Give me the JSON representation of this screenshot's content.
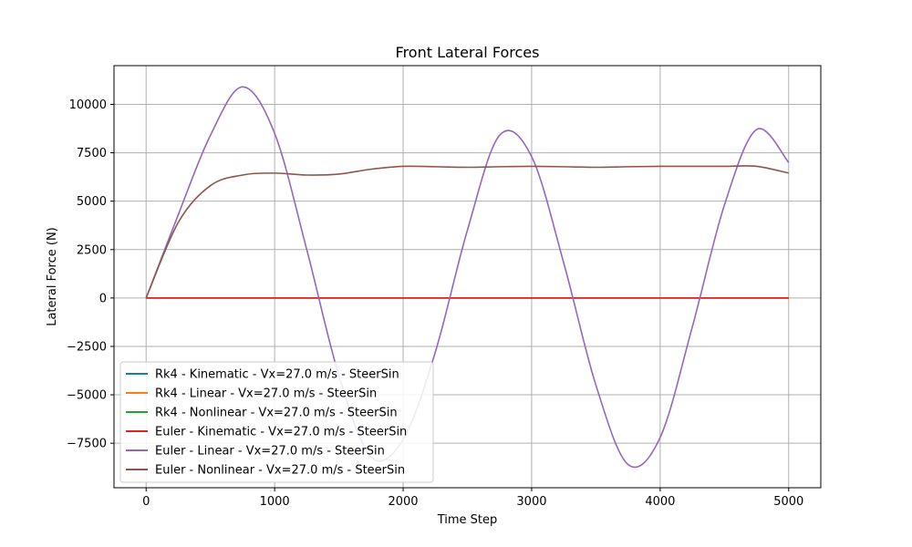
{
  "chart_data": {
    "type": "line",
    "title": "Front Lateral Forces",
    "xlabel": "Time Step",
    "ylabel": "Lateral Force (N)",
    "xlim": [
      -250,
      5250
    ],
    "ylim": [
      -9800,
      12000
    ],
    "xticks": [
      0,
      1000,
      2000,
      3000,
      4000,
      5000
    ],
    "xtick_labels": [
      "0",
      "1000",
      "2000",
      "3000",
      "4000",
      "5000"
    ],
    "yticks": [
      -7500,
      -5000,
      -2500,
      0,
      2500,
      5000,
      7500,
      10000
    ],
    "ytick_labels": [
      "−7500",
      "−5000",
      "−2500",
      "0",
      "2500",
      "5000",
      "7500",
      "10000"
    ],
    "grid": true,
    "legend_position": "lower-left",
    "x": [
      0,
      250,
      500,
      750,
      1000,
      1250,
      1500,
      1750,
      2000,
      2250,
      2500,
      2750,
      3000,
      3250,
      3500,
      3750,
      4000,
      4250,
      4500,
      4750,
      5000
    ],
    "series": [
      {
        "name": "Rk4 - Kinematic - Vx=27.0 m/s - SteerSin",
        "color": "#1f77b4",
        "values": [
          0,
          0,
          0,
          0,
          0,
          0,
          0,
          0,
          0,
          0,
          0,
          0,
          0,
          0,
          0,
          0,
          0,
          0,
          0,
          0,
          0
        ]
      },
      {
        "name": "Rk4 - Linear - Vx=27.0 m/s - SteerSin",
        "color": "#ff7f0e",
        "values": [
          0,
          0,
          0,
          0,
          0,
          0,
          0,
          0,
          0,
          0,
          0,
          0,
          0,
          0,
          0,
          0,
          0,
          0,
          0,
          0,
          0
        ]
      },
      {
        "name": "Rk4 - Nonlinear - Vx=27.0 m/s - SteerSin",
        "color": "#2ca02c",
        "values": [
          0,
          0,
          0,
          0,
          0,
          0,
          0,
          0,
          0,
          0,
          0,
          0,
          0,
          0,
          0,
          0,
          0,
          0,
          0,
          0,
          0
        ]
      },
      {
        "name": "Euler - Kinematic - Vx=27.0 m/s - SteerSin",
        "color": "#d62728",
        "values": [
          0,
          0,
          0,
          0,
          0,
          0,
          0,
          0,
          0,
          0,
          0,
          0,
          0,
          0,
          0,
          0,
          0,
          0,
          0,
          0,
          0
        ]
      },
      {
        "name": "Euler - Linear - Vx=27.0 m/s - SteerSin",
        "color": "#9467bd",
        "values": [
          0,
          4300,
          8400,
          10900,
          8500,
          2500,
          -4000,
          -8200,
          -7300,
          -2800,
          3500,
          8400,
          7300,
          1800,
          -4500,
          -8600,
          -7200,
          -1500,
          4800,
          8700,
          7000
        ]
      },
      {
        "name": "Euler - Nonlinear - Vx=27.0 m/s - SteerSin",
        "color": "#8c564b",
        "values": [
          0,
          3900,
          5800,
          6350,
          6450,
          6350,
          6400,
          6650,
          6800,
          6780,
          6750,
          6780,
          6800,
          6780,
          6750,
          6780,
          6800,
          6800,
          6800,
          6800,
          6450
        ]
      }
    ]
  }
}
